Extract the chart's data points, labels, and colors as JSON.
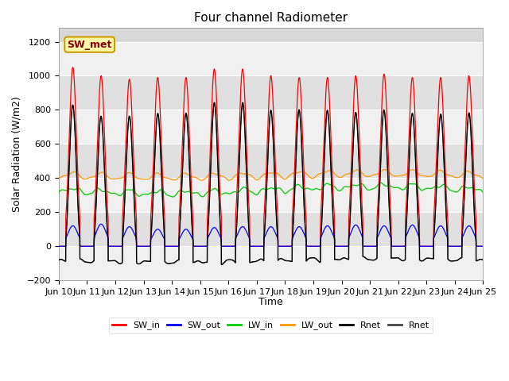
{
  "title": "Four channel Radiometer",
  "xlabel": "Time",
  "ylabel": "Solar Radiation (W/m2)",
  "ylim": [
    -200,
    1280
  ],
  "n_days": 15,
  "bg_color": "#d8d8d8",
  "annotation_text": "SW_met",
  "annotation_color": "#8B0000",
  "annotation_bg": "#ffffaa",
  "annotation_edge": "#cc9900",
  "legend": [
    {
      "label": "SW_in",
      "color": "#ff0000"
    },
    {
      "label": "SW_out",
      "color": "#0000ff"
    },
    {
      "label": "LW_in",
      "color": "#00cc00"
    },
    {
      "label": "LW_out",
      "color": "#ff9900"
    },
    {
      "label": "Rnet",
      "color": "#000000"
    },
    {
      "label": "Rnet",
      "color": "#444444"
    }
  ],
  "xtick_labels": [
    "Jun 10",
    "Jun 11",
    "Jun 12",
    "Jun 13",
    "Jun 14",
    "Jun 15",
    "Jun 16",
    "Jun 17",
    "Jun 18",
    "Jun 19",
    "Jun 20",
    "Jun 21",
    "Jun 22",
    "Jun 23",
    "Jun 24",
    "Jun 25"
  ],
  "yticks": [
    -200,
    0,
    200,
    400,
    600,
    800,
    1000,
    1200
  ],
  "SW_in_peaks": [
    1050,
    1000,
    980,
    990,
    990,
    1040,
    1040,
    1000,
    990,
    990,
    1000,
    1010,
    990,
    990,
    1000
  ],
  "SW_out_peaks": [
    120,
    130,
    115,
    100,
    100,
    110,
    115,
    115,
    115,
    120,
    125,
    120,
    125,
    120,
    120
  ],
  "LW_in_base": 310,
  "LW_in_amp": 35,
  "LW_out_base": 390,
  "LW_out_amp": 45,
  "Rnet_night": -100,
  "title_fontsize": 11,
  "label_fontsize": 9,
  "tick_fontsize": 8,
  "legend_fontsize": 8
}
